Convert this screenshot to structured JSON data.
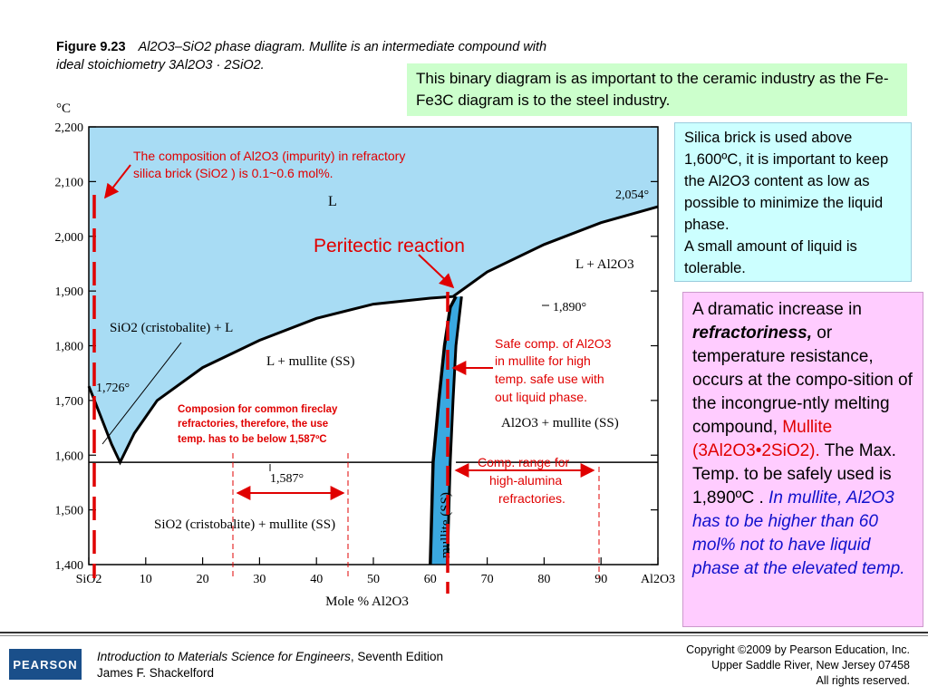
{
  "caption": {
    "figure": "Figure 9.23",
    "line1": "Al2O3–SiO2 phase diagram. Mullite is an intermediate compound with",
    "line2": "ideal stoichiometry 3Al2O3 · 2SiO2."
  },
  "notes": {
    "green": "This binary diagram is as important to the ceramic industry as the Fe-Fe3C diagram is to the steel industry.",
    "cyan_1": "Silica brick is used above 1,600ºC, it is important to keep the Al2O3 content as low as possible to minimize the liquid phase.",
    "cyan_2": "A small amount of liquid is tolerable.",
    "pink_1": "A dramatic increase in",
    "pink_bold": "refractoriness,",
    "pink_2": " or temperature resistance, occurs at the compo-sition of the incongrue-ntly melting compound,",
    "pink_red": "Mullite (3Al2O3•2SiO2).",
    "pink_3": " The Max. Temp. to be safely used is 1,890ºC .",
    "pink_blue": "In mullite, Al2O3 has to be higher than 60 mol% not to have liquid phase at the elevated temp."
  },
  "annotations": {
    "impurity_1": "The composition of Al2O3 (impurity) in refractory",
    "impurity_2": "silica brick (SiO2 ) is 0.1~0.6 mol%.",
    "peritectic": "Peritectic reaction",
    "safe_1": "Safe comp. of Al2O3",
    "safe_2": "in mullite for high",
    "safe_3": "temp. safe use with",
    "safe_4": "out liquid phase.",
    "fireclay_1": "Composion for common fireclay",
    "fireclay_2": "refractories, therefore, the use",
    "fireclay_3": "temp. has to be below 1,587ºC",
    "alumina_1": "Comp. range for",
    "alumina_2": "high-alumina",
    "alumina_3": "refractories."
  },
  "chart_data": {
    "type": "area",
    "ylabel": "°C",
    "xlabel": "Mole % Al2O3",
    "xlim": [
      0,
      100
    ],
    "ylim": [
      1400,
      2200
    ],
    "x_ticks": [
      "SiO2",
      "10",
      "20",
      "30",
      "40",
      "50",
      "60",
      "70",
      "80",
      "90",
      "Al2O3"
    ],
    "y_ticks": [
      "1,400",
      "1,500",
      "1,600",
      "1,700",
      "1,800",
      "1,900",
      "2,000",
      "2,100",
      "2,200"
    ],
    "x_tick_values": [
      0,
      10,
      20,
      30,
      40,
      50,
      60,
      70,
      80,
      90,
      100
    ],
    "y_tick_values": [
      1400,
      1500,
      1600,
      1700,
      1800,
      1900,
      2000,
      2100,
      2200
    ],
    "liquidus_left": [
      [
        0,
        1726
      ],
      [
        1,
        1700
      ],
      [
        2.5,
        1660
      ],
      [
        4,
        1620
      ],
      [
        5.5,
        1587
      ]
    ],
    "liquidus_right": [
      [
        5.5,
        1587
      ],
      [
        8,
        1640
      ],
      [
        12,
        1700
      ],
      [
        20,
        1760
      ],
      [
        30,
        1810
      ],
      [
        40,
        1850
      ],
      [
        50,
        1876
      ],
      [
        60,
        1887
      ],
      [
        64,
        1890
      ],
      [
        70,
        1935
      ],
      [
        80,
        1985
      ],
      [
        90,
        2025
      ],
      [
        100,
        2054
      ]
    ],
    "mullite_left": [
      [
        60,
        1400
      ],
      [
        60.5,
        1587
      ],
      [
        61.5,
        1700
      ],
      [
        62.5,
        1800
      ],
      [
        63.5,
        1870
      ],
      [
        64.5,
        1890
      ]
    ],
    "mullite_right": [
      [
        63,
        1400
      ],
      [
        63.5,
        1587
      ],
      [
        64,
        1700
      ],
      [
        64.5,
        1800
      ],
      [
        65.5,
        1890
      ]
    ],
    "eutectic_temp": 1587,
    "peritectic_temp": 1890,
    "sio2_melting": 1726,
    "al2o3_melting": 2054,
    "region_labels": {
      "liquid": "L",
      "l_al2o3": "L + Al2O3",
      "sio2_l": "SiO2 (cristobalite) + L",
      "l_mullite": "L + mullite (SS)",
      "al2o3_mullite": "Al2O3 + mullite (SS)",
      "sio2_mullite": "SiO2 (cristobalite) + mullite (SS)",
      "mullite": "mullite (SS)"
    },
    "point_labels": {
      "sio2_melt": "1,726°",
      "al2o3_melt": "2,054°",
      "peritectic": "1,890°",
      "eutectic": "1,587°"
    },
    "colors": {
      "liquid": "#a8dcf4",
      "mullite": "#3aa8e0",
      "red": "#e00000"
    }
  },
  "footer": {
    "logo": "PEARSON",
    "book_title": "Introduction to Materials Science for Engineers",
    "edition": ", Seventh Edition",
    "author": "James F. Shackelford",
    "copy_1": "Copyright ©2009 by Pearson Education, Inc.",
    "copy_2": "Upper Saddle River, New Jersey 07458",
    "copy_3": "All rights reserved."
  }
}
